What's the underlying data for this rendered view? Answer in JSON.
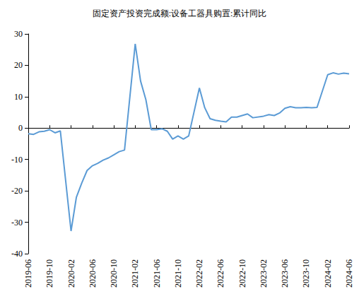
{
  "chart_data": {
    "type": "line",
    "title": "固定资产投资完成额:设备工器具购置:累计同比",
    "categories": [
      "2019-06",
      null,
      null,
      null,
      "2019-10",
      null,
      null,
      null,
      "2020-02",
      null,
      null,
      null,
      "2020-06",
      null,
      null,
      null,
      "2020-10",
      null,
      null,
      null,
      "2021-02",
      null,
      null,
      null,
      "2021-06",
      null,
      null,
      null,
      "2021-10",
      null,
      null,
      null,
      "2022-02",
      null,
      null,
      null,
      "2022-06",
      null,
      null,
      null,
      "2022-10",
      null,
      null,
      null,
      "2023-02",
      null,
      null,
      null,
      "2023-06",
      null,
      null,
      null,
      "2023-10",
      null,
      null,
      null,
      "2024-02",
      null,
      null,
      null,
      "2024-06"
    ],
    "values": [
      -1.8,
      -2.0,
      -1.2,
      -1.0,
      -0.5,
      -1.5,
      -0.9,
      null,
      -32.8,
      -22.0,
      -17.5,
      -13.5,
      -12.0,
      -11.2,
      -10.2,
      -9.5,
      -8.5,
      -7.5,
      -7.0,
      null,
      26.8,
      15.0,
      9.0,
      -0.5,
      -0.5,
      -0.2,
      -1.0,
      -3.5,
      -2.5,
      -3.5,
      -2.5,
      null,
      12.8,
      6.5,
      3.0,
      2.5,
      2.2,
      2.0,
      3.5,
      3.5,
      4.0,
      4.5,
      3.3,
      null,
      3.8,
      4.3,
      4.0,
      4.8,
      6.3,
      6.8,
      6.5,
      6.5,
      6.6,
      6.5,
      6.6,
      null,
      17.0,
      17.6,
      17.2,
      17.5,
      17.3
    ],
    "color": "#5b9bd5",
    "ylim": [
      -40,
      30
    ],
    "yticks": [
      -40,
      -30,
      -20,
      -10,
      0,
      10,
      20,
      30
    ],
    "grid": false
  }
}
